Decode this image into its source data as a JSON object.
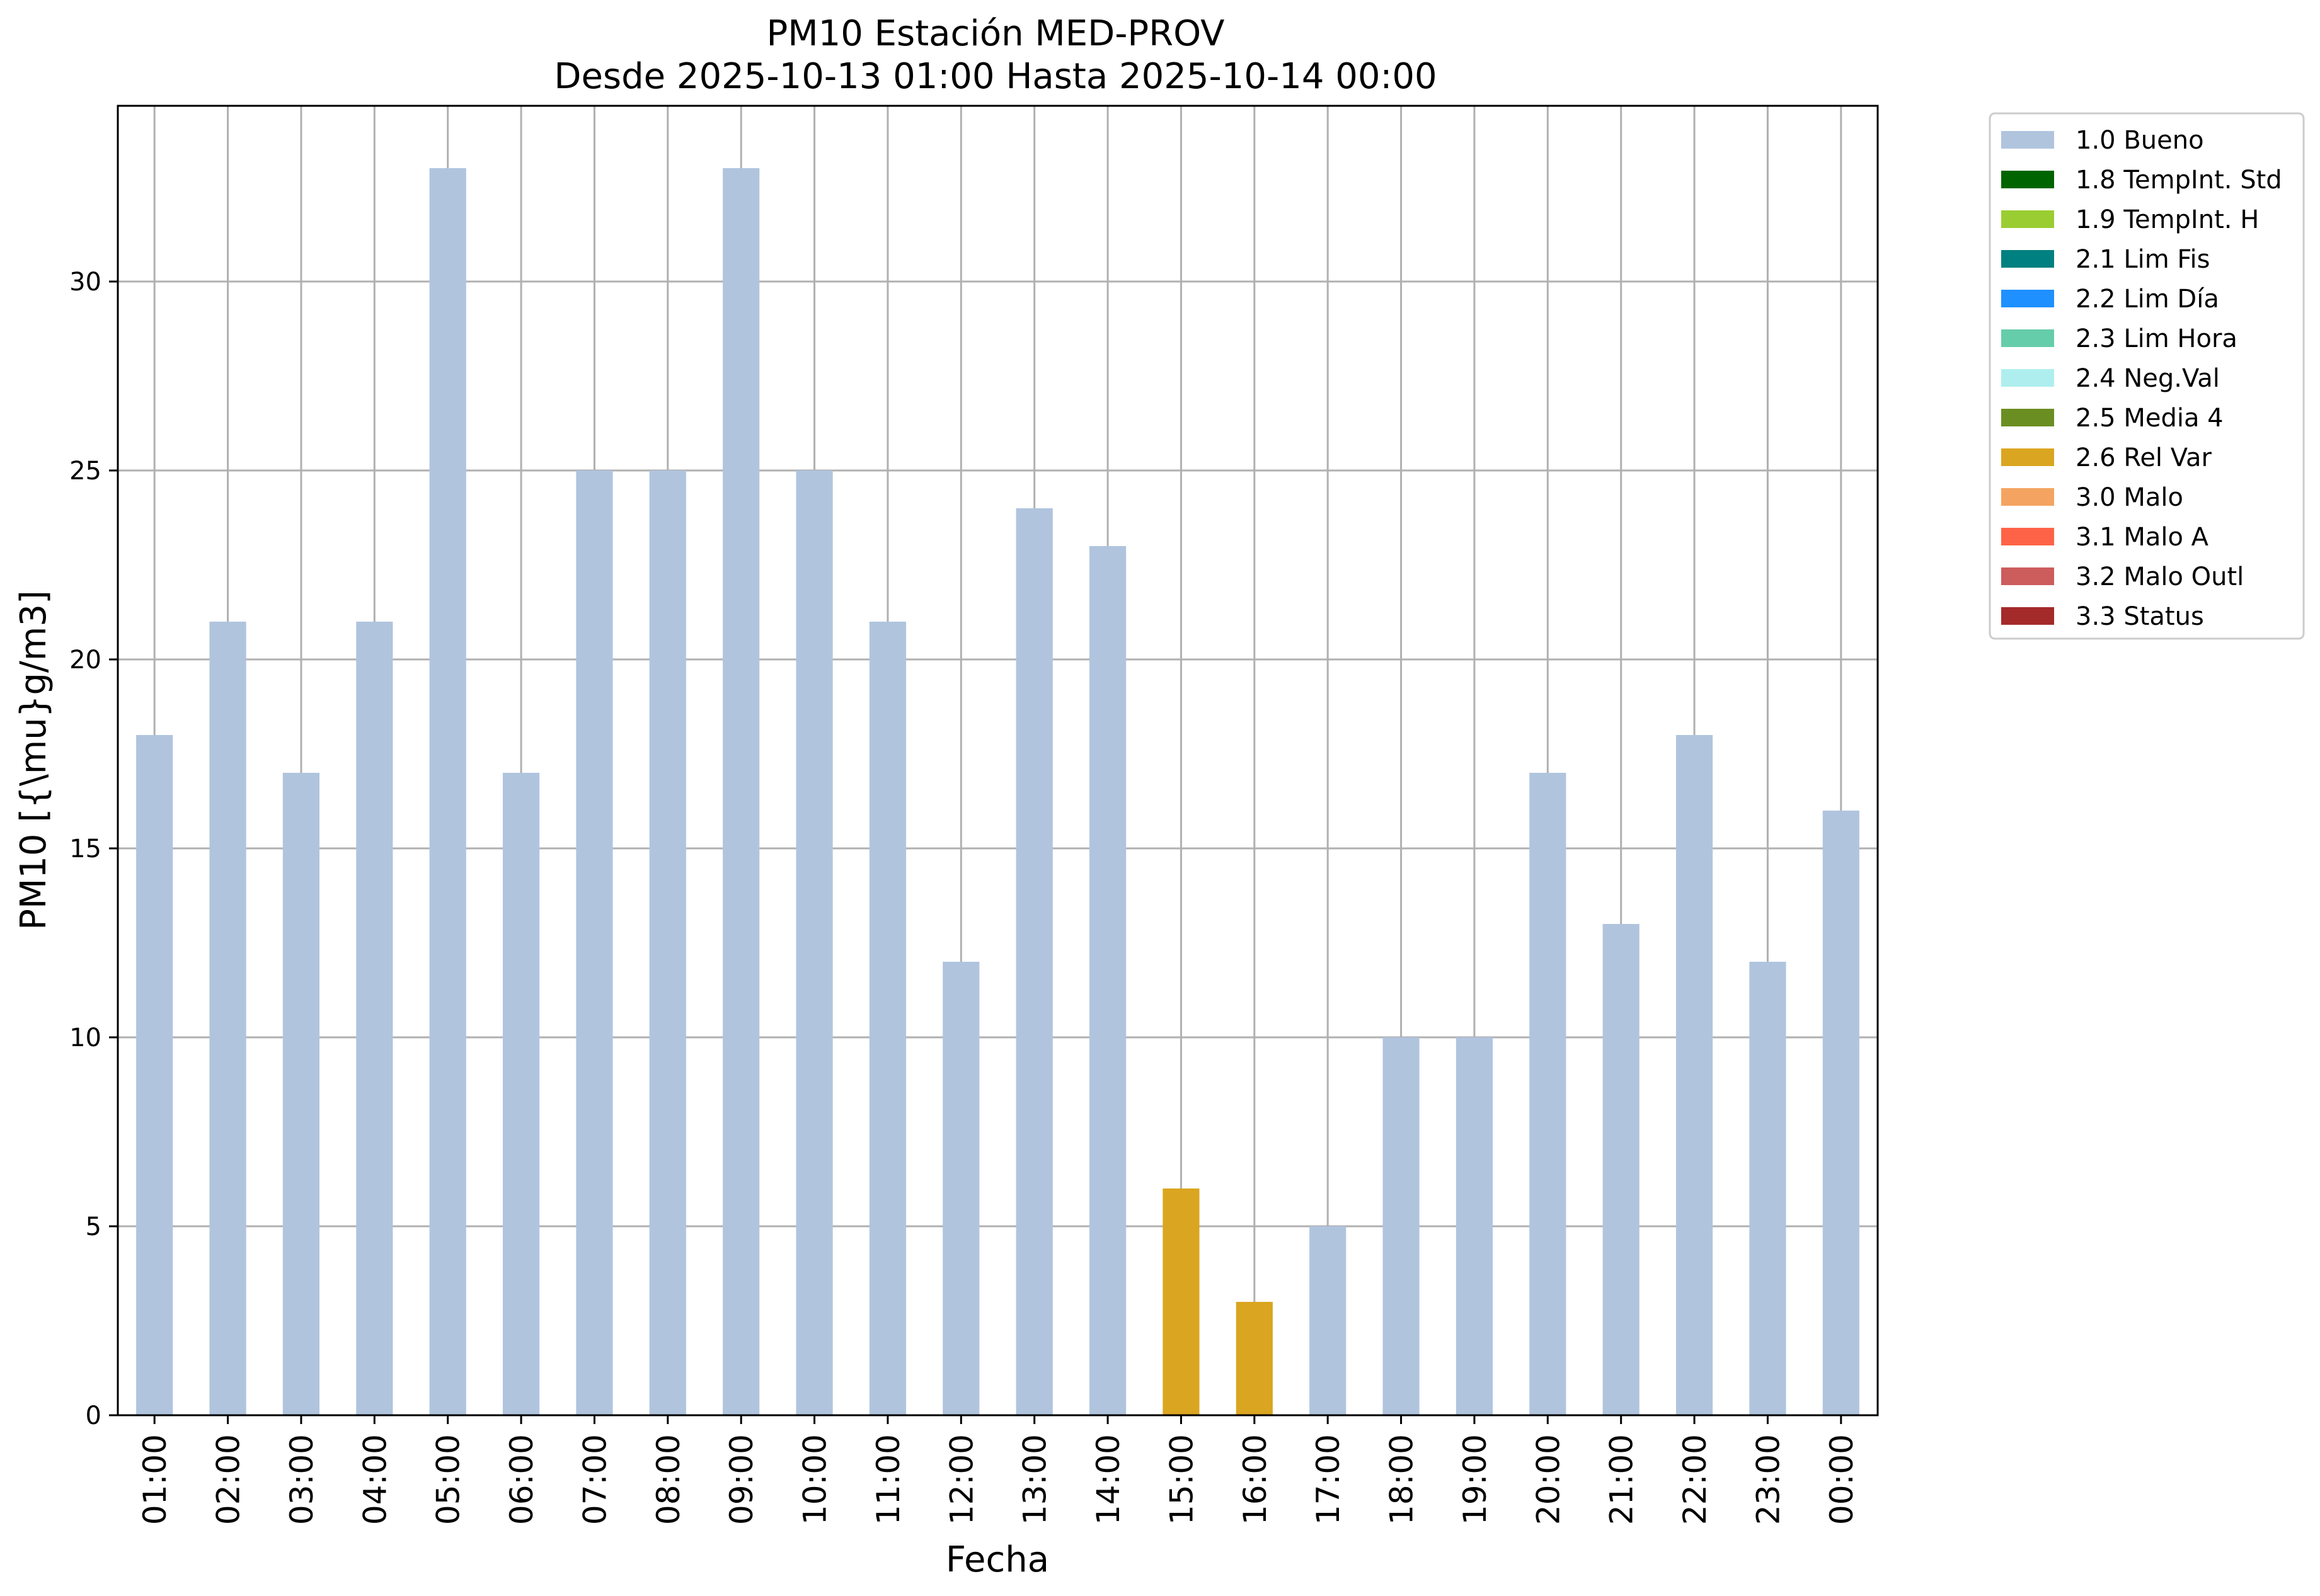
{
  "chart_data": {
    "type": "bar",
    "title": "PM10 Estación MED-PROV",
    "subtitle": "Desde 2025-10-13 01:00 Hasta 2025-10-14 00:00",
    "xlabel": "Fecha",
    "ylabel": "PM10 [{\\mu}g/m3]",
    "ylim": [
      0,
      34.65
    ],
    "yticks": [
      0,
      5,
      10,
      15,
      20,
      25,
      30
    ],
    "grid": true,
    "legend_position": "outside top-right",
    "categories": [
      "01:00",
      "02:00",
      "03:00",
      "04:00",
      "05:00",
      "06:00",
      "07:00",
      "08:00",
      "09:00",
      "10:00",
      "11:00",
      "12:00",
      "13:00",
      "14:00",
      "15:00",
      "16:00",
      "17:00",
      "18:00",
      "19:00",
      "20:00",
      "21:00",
      "22:00",
      "23:00",
      "00:00"
    ],
    "values": [
      18,
      21,
      17,
      21,
      33,
      17,
      25,
      25,
      33,
      25,
      21,
      12,
      24,
      23,
      6,
      3,
      5,
      10,
      10,
      17,
      13,
      18,
      12,
      16
    ],
    "flags": [
      "1.0 Bueno",
      "1.0 Bueno",
      "1.0 Bueno",
      "1.0 Bueno",
      "1.0 Bueno",
      "1.0 Bueno",
      "1.0 Bueno",
      "1.0 Bueno",
      "1.0 Bueno",
      "1.0 Bueno",
      "1.0 Bueno",
      "1.0 Bueno",
      "1.0 Bueno",
      "1.0 Bueno",
      "2.6 Rel Var",
      "2.6 Rel Var",
      "1.0 Bueno",
      "1.0 Bueno",
      "1.0 Bueno",
      "1.0 Bueno",
      "1.0 Bueno",
      "1.0 Bueno",
      "1.0 Bueno",
      "1.0 Bueno"
    ],
    "legend": [
      {
        "name": "1.0 Bueno",
        "color": "#b0c4de"
      },
      {
        "name": "1.8 TempInt. Std",
        "color": "#006400"
      },
      {
        "name": "1.9 TempInt. H",
        "color": "#9acd32"
      },
      {
        "name": "2.1 Lim Fis",
        "color": "#008080"
      },
      {
        "name": "2.2 Lim Día",
        "color": "#1e90ff"
      },
      {
        "name": "2.3 Lim Hora",
        "color": "#66cdaa"
      },
      {
        "name": "2.4 Neg.Val",
        "color": "#afeeee"
      },
      {
        "name": "2.5 Media 4",
        "color": "#6b8e23"
      },
      {
        "name": "2.6 Rel Var",
        "color": "#daa520"
      },
      {
        "name": "3.0 Malo",
        "color": "#f4a460"
      },
      {
        "name": "3.1 Malo A",
        "color": "#ff6347"
      },
      {
        "name": "3.2 Malo Outl",
        "color": "#cd5c5c"
      },
      {
        "name": "3.3 Status",
        "color": "#a52a2a"
      }
    ]
  }
}
